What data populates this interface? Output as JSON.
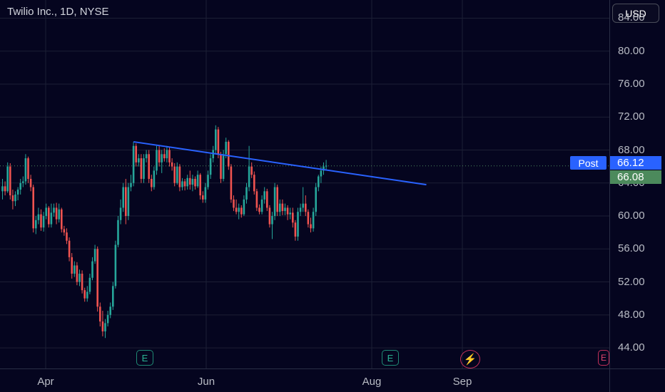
{
  "header": {
    "symbol_title": "Twilio Inc., 1D, NYSE",
    "currency": "USD"
  },
  "price_labels": {
    "post_label": "Post",
    "post_price": "66.12",
    "last_price": "66.08"
  },
  "events": {
    "earnings_label": "E",
    "split_icon": "lightning-icon",
    "partial_label": "E"
  },
  "colors": {
    "background": "#05051f",
    "up": "#26a69a",
    "down": "#ef5350",
    "trendline": "#2962ff",
    "grid": "#1c1f35"
  },
  "chart_data": {
    "type": "candlestick",
    "title": "Twilio Inc., 1D, NYSE",
    "xlabel": "",
    "ylabel": "",
    "x_ticks": [
      "Apr",
      "Jun",
      "Aug",
      "Sep"
    ],
    "y_ticks": [
      "44.00",
      "48.00",
      "52.00",
      "56.00",
      "60.00",
      "64.00",
      "68.00",
      "72.00",
      "76.00",
      "80.00",
      "84.00"
    ],
    "ylim": [
      41.5,
      86.2
    ],
    "grid": true,
    "post_market_price": 66.12,
    "last_price": 66.08,
    "candles": [
      [
        63.0,
        64.5,
        62.0,
        63.6
      ],
      [
        63.6,
        64.2,
        62.5,
        63.0
      ],
      [
        63.0,
        66.5,
        62.8,
        66.0
      ],
      [
        66.0,
        66.4,
        62.0,
        62.5
      ],
      [
        62.5,
        63.2,
        60.8,
        61.8
      ],
      [
        61.8,
        63.0,
        61.2,
        62.6
      ],
      [
        62.6,
        63.5,
        61.9,
        63.2
      ],
      [
        63.2,
        64.5,
        62.6,
        64.0
      ],
      [
        64.0,
        64.8,
        63.5,
        64.2
      ],
      [
        64.2,
        67.5,
        63.8,
        67.0
      ],
      [
        67.0,
        67.2,
        64.0,
        64.5
      ],
      [
        64.5,
        65.0,
        63.0,
        63.5
      ],
      [
        63.5,
        63.8,
        58.0,
        58.5
      ],
      [
        58.5,
        60.0,
        57.8,
        59.5
      ],
      [
        59.5,
        61.0,
        59.0,
        60.2
      ],
      [
        60.2,
        60.8,
        58.2,
        58.6
      ],
      [
        58.6,
        60.5,
        58.1,
        60.0
      ],
      [
        60.0,
        61.5,
        59.6,
        61.0
      ],
      [
        61.0,
        61.2,
        58.6,
        59.0
      ],
      [
        59.0,
        61.5,
        58.6,
        60.4
      ],
      [
        60.4,
        61.5,
        59.9,
        61.0
      ],
      [
        61.0,
        61.6,
        59.0,
        59.6
      ],
      [
        59.6,
        61.5,
        59.2,
        60.8
      ],
      [
        60.8,
        61.0,
        58.0,
        58.4
      ],
      [
        58.4,
        58.8,
        57.6,
        58.0
      ],
      [
        58.0,
        58.5,
        56.6,
        57.0
      ],
      [
        57.0,
        57.4,
        54.5,
        55.0
      ],
      [
        55.0,
        55.5,
        52.4,
        53.0
      ],
      [
        53.0,
        54.5,
        52.6,
        54.0
      ],
      [
        54.0,
        54.4,
        51.6,
        52.0
      ],
      [
        52.0,
        53.5,
        51.5,
        53.0
      ],
      [
        53.0,
        53.4,
        50.6,
        51.0
      ],
      [
        51.0,
        51.3,
        49.6,
        50.0
      ],
      [
        50.0,
        51.5,
        49.6,
        50.8
      ],
      [
        50.8,
        53.0,
        50.5,
        52.5
      ],
      [
        52.5,
        55.0,
        52.2,
        54.5
      ],
      [
        54.5,
        56.5,
        54.2,
        56.0
      ],
      [
        56.0,
        56.3,
        48.4,
        49.0
      ],
      [
        49.0,
        49.5,
        46.6,
        47.2
      ],
      [
        47.2,
        48.5,
        45.4,
        46.0
      ],
      [
        46.0,
        47.5,
        45.2,
        47.0
      ],
      [
        47.0,
        48.5,
        46.6,
        48.0
      ],
      [
        48.0,
        49.5,
        47.6,
        49.0
      ],
      [
        49.0,
        52.0,
        48.6,
        51.5
      ],
      [
        51.5,
        57.0,
        51.2,
        56.5
      ],
      [
        56.5,
        60.0,
        56.2,
        59.5
      ],
      [
        59.5,
        62.0,
        59.0,
        61.0
      ],
      [
        61.0,
        64.0,
        60.5,
        63.5
      ],
      [
        63.5,
        64.5,
        59.0,
        60.0
      ],
      [
        60.0,
        64.0,
        59.5,
        63.5
      ],
      [
        63.5,
        65.0,
        63.0,
        64.0
      ],
      [
        64.0,
        69.0,
        63.6,
        68.5
      ],
      [
        68.5,
        68.8,
        66.0,
        66.5
      ],
      [
        66.5,
        67.5,
        66.0,
        67.0
      ],
      [
        67.0,
        67.5,
        64.0,
        64.5
      ],
      [
        64.5,
        67.5,
        64.0,
        67.0
      ],
      [
        67.0,
        68.0,
        66.5,
        67.5
      ],
      [
        67.5,
        68.0,
        64.0,
        64.5
      ],
      [
        64.5,
        65.0,
        63.0,
        63.5
      ],
      [
        63.5,
        66.0,
        63.2,
        65.5
      ],
      [
        65.5,
        68.5,
        65.0,
        68.0
      ],
      [
        68.0,
        68.5,
        66.0,
        66.5
      ],
      [
        66.5,
        68.0,
        65.2,
        67.5
      ],
      [
        67.5,
        68.2,
        66.6,
        67.0
      ],
      [
        67.0,
        68.5,
        66.5,
        68.0
      ],
      [
        68.0,
        68.3,
        66.0,
        66.5
      ],
      [
        66.5,
        67.0,
        65.5,
        66.0
      ],
      [
        66.0,
        66.4,
        63.6,
        64.0
      ],
      [
        64.0,
        66.5,
        63.8,
        66.0
      ],
      [
        66.0,
        66.3,
        63.0,
        63.5
      ],
      [
        63.5,
        64.6,
        63.1,
        64.2
      ],
      [
        64.2,
        64.5,
        63.1,
        63.6
      ],
      [
        63.6,
        65.0,
        63.2,
        64.6
      ],
      [
        64.6,
        65.5,
        63.2,
        63.8
      ],
      [
        63.8,
        65.0,
        63.0,
        64.5
      ],
      [
        64.5,
        64.8,
        63.2,
        63.6
      ],
      [
        63.6,
        65.5,
        63.4,
        65.0
      ],
      [
        65.0,
        65.2,
        62.0,
        62.5
      ],
      [
        62.5,
        63.0,
        61.6,
        62.0
      ],
      [
        62.0,
        64.0,
        61.6,
        63.5
      ],
      [
        63.5,
        65.5,
        63.2,
        65.0
      ],
      [
        65.0,
        67.5,
        64.5,
        67.0
      ],
      [
        67.0,
        68.5,
        66.5,
        68.0
      ],
      [
        68.0,
        71.0,
        67.6,
        70.5
      ],
      [
        70.5,
        70.8,
        67.0,
        67.5
      ],
      [
        67.5,
        67.8,
        64.0,
        64.5
      ],
      [
        64.5,
        68.0,
        64.2,
        67.5
      ],
      [
        67.5,
        69.5,
        67.0,
        69.0
      ],
      [
        69.0,
        69.2,
        65.6,
        66.0
      ],
      [
        66.0,
        66.3,
        61.6,
        62.0
      ],
      [
        62.0,
        62.5,
        60.6,
        61.0
      ],
      [
        61.0,
        62.0,
        60.2,
        60.5
      ],
      [
        60.5,
        61.5,
        59.6,
        61.0
      ],
      [
        61.0,
        61.3,
        59.8,
        60.2
      ],
      [
        60.2,
        62.5,
        60.0,
        62.0
      ],
      [
        62.0,
        64.0,
        61.5,
        63.5
      ],
      [
        63.5,
        68.5,
        63.0,
        66.0
      ],
      [
        66.0,
        66.5,
        64.6,
        65.0
      ],
      [
        65.0,
        65.4,
        62.6,
        63.0
      ],
      [
        63.0,
        63.3,
        60.6,
        61.0
      ],
      [
        61.0,
        61.4,
        60.2,
        60.5
      ],
      [
        60.5,
        62.5,
        60.2,
        62.0
      ],
      [
        62.0,
        63.5,
        61.5,
        63.0
      ],
      [
        63.0,
        63.3,
        60.6,
        61.0
      ],
      [
        61.0,
        61.3,
        58.6,
        59.0
      ],
      [
        59.0,
        60.5,
        57.2,
        60.0
      ],
      [
        60.0,
        64.0,
        59.5,
        63.5
      ],
      [
        63.5,
        63.8,
        60.0,
        60.5
      ],
      [
        60.5,
        62.0,
        60.0,
        61.5
      ],
      [
        61.5,
        62.0,
        60.1,
        60.6
      ],
      [
        60.6,
        61.5,
        60.1,
        61.0
      ],
      [
        61.0,
        61.3,
        59.5,
        60.2
      ],
      [
        60.2,
        61.0,
        59.6,
        60.4
      ],
      [
        60.4,
        61.0,
        58.6,
        59.2
      ],
      [
        59.2,
        59.5,
        57.0,
        57.5
      ],
      [
        57.5,
        61.0,
        57.0,
        60.5
      ],
      [
        60.5,
        61.5,
        60.0,
        61.0
      ],
      [
        61.0,
        63.5,
        60.5,
        61.5
      ],
      [
        61.5,
        62.5,
        60.0,
        60.5
      ],
      [
        60.5,
        60.8,
        58.6,
        59.0
      ],
      [
        59.0,
        59.8,
        58.0,
        58.5
      ],
      [
        58.5,
        61.0,
        58.1,
        60.5
      ],
      [
        60.5,
        64.0,
        60.0,
        63.5
      ],
      [
        63.5,
        65.0,
        63.0,
        64.8
      ],
      [
        64.8,
        66.0,
        64.0,
        65.5
      ],
      [
        65.5,
        66.5,
        65.0,
        66.0
      ],
      [
        66.0,
        66.8,
        65.5,
        66.1
      ]
    ],
    "trendline": {
      "start": {
        "candle_index": 51,
        "price": 69.0
      },
      "end": {
        "candle_index": 165,
        "price": 63.8
      }
    }
  }
}
